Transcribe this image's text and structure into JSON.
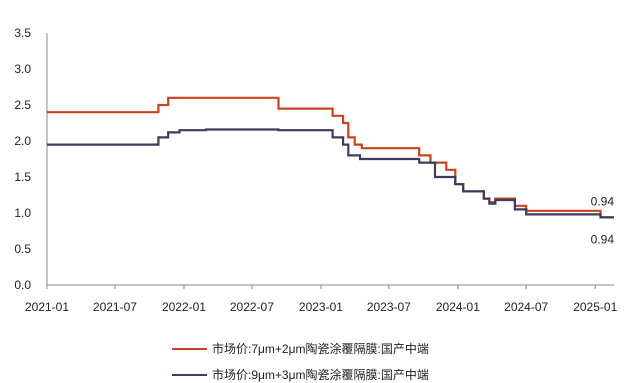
{
  "chart_data": {
    "type": "line",
    "title": "",
    "xlabel": "",
    "ylabel": "",
    "ylim": [
      0,
      3.5
    ],
    "yticks": [
      "0.0",
      "0.5",
      "1.0",
      "1.5",
      "2.0",
      "2.5",
      "3.0",
      "3.5"
    ],
    "xticks": [
      "2021-01",
      "2021-07",
      "2022-01",
      "2022-07",
      "2023-01",
      "2023-07",
      "2024-01",
      "2024-07",
      "2025-01"
    ],
    "grid": false,
    "legend_position": "bottom",
    "series": [
      {
        "name": "市场价:7μm+2μm陶瓷涂覆隔膜:国产中端",
        "color": "#c8441e",
        "end_label": "0.94",
        "points": [
          [
            "2021-01-01",
            2.4
          ],
          [
            "2021-10-25",
            2.4
          ],
          [
            "2021-10-25",
            2.5
          ],
          [
            "2021-11-20",
            2.5
          ],
          [
            "2021-11-20",
            2.6
          ],
          [
            "2022-09-10",
            2.6
          ],
          [
            "2022-09-10",
            2.45
          ],
          [
            "2023-02-01",
            2.45
          ],
          [
            "2023-02-01",
            2.35
          ],
          [
            "2023-03-01",
            2.35
          ],
          [
            "2023-03-01",
            2.25
          ],
          [
            "2023-03-15",
            2.25
          ],
          [
            "2023-03-15",
            2.05
          ],
          [
            "2023-04-01",
            2.05
          ],
          [
            "2023-04-01",
            1.95
          ],
          [
            "2023-04-20",
            1.95
          ],
          [
            "2023-04-20",
            1.9
          ],
          [
            "2023-09-20",
            1.9
          ],
          [
            "2023-09-20",
            1.8
          ],
          [
            "2023-10-20",
            1.8
          ],
          [
            "2023-10-20",
            1.7
          ],
          [
            "2023-12-01",
            1.7
          ],
          [
            "2023-12-01",
            1.6
          ],
          [
            "2023-12-25",
            1.6
          ],
          [
            "2023-12-25",
            1.4
          ],
          [
            "2024-01-15",
            1.4
          ],
          [
            "2024-01-15",
            1.3
          ],
          [
            "2024-03-10",
            1.3
          ],
          [
            "2024-03-10",
            1.2
          ],
          [
            "2024-03-25",
            1.2
          ],
          [
            "2024-03-25",
            1.15
          ],
          [
            "2024-04-10",
            1.15
          ],
          [
            "2024-04-10",
            1.2
          ],
          [
            "2024-06-01",
            1.2
          ],
          [
            "2024-06-01",
            1.1
          ],
          [
            "2024-07-01",
            1.1
          ],
          [
            "2024-07-01",
            1.03
          ],
          [
            "2025-01-15",
            1.03
          ],
          [
            "2025-01-15",
            0.94
          ],
          [
            "2025-02-20",
            0.94
          ]
        ]
      },
      {
        "name": "市场价:9μm+3μm陶瓷涂覆隔膜:国产中端",
        "color": "#3f3b5a",
        "end_label": "0.94",
        "points": [
          [
            "2021-01-01",
            1.95
          ],
          [
            "2021-10-25",
            1.95
          ],
          [
            "2021-10-25",
            2.05
          ],
          [
            "2021-11-20",
            2.05
          ],
          [
            "2021-11-20",
            2.12
          ],
          [
            "2021-12-20",
            2.12
          ],
          [
            "2021-12-20",
            2.15
          ],
          [
            "2022-03-01",
            2.15
          ],
          [
            "2022-03-01",
            2.16
          ],
          [
            "2022-09-10",
            2.16
          ],
          [
            "2022-09-10",
            2.15
          ],
          [
            "2023-02-01",
            2.15
          ],
          [
            "2023-02-01",
            2.05
          ],
          [
            "2023-03-01",
            2.05
          ],
          [
            "2023-03-01",
            1.95
          ],
          [
            "2023-03-15",
            1.95
          ],
          [
            "2023-03-15",
            1.8
          ],
          [
            "2023-04-15",
            1.8
          ],
          [
            "2023-04-15",
            1.75
          ],
          [
            "2023-09-20",
            1.75
          ],
          [
            "2023-09-20",
            1.7
          ],
          [
            "2023-11-01",
            1.7
          ],
          [
            "2023-11-01",
            1.5
          ],
          [
            "2023-12-25",
            1.5
          ],
          [
            "2023-12-25",
            1.4
          ],
          [
            "2024-01-15",
            1.4
          ],
          [
            "2024-01-15",
            1.3
          ],
          [
            "2024-03-10",
            1.3
          ],
          [
            "2024-03-10",
            1.2
          ],
          [
            "2024-03-25",
            1.2
          ],
          [
            "2024-03-25",
            1.13
          ],
          [
            "2024-04-10",
            1.13
          ],
          [
            "2024-04-10",
            1.18
          ],
          [
            "2024-06-01",
            1.18
          ],
          [
            "2024-06-01",
            1.05
          ],
          [
            "2024-07-01",
            1.05
          ],
          [
            "2024-07-01",
            0.98
          ],
          [
            "2025-01-15",
            0.98
          ],
          [
            "2025-01-15",
            0.94
          ],
          [
            "2025-02-20",
            0.94
          ]
        ]
      }
    ]
  }
}
